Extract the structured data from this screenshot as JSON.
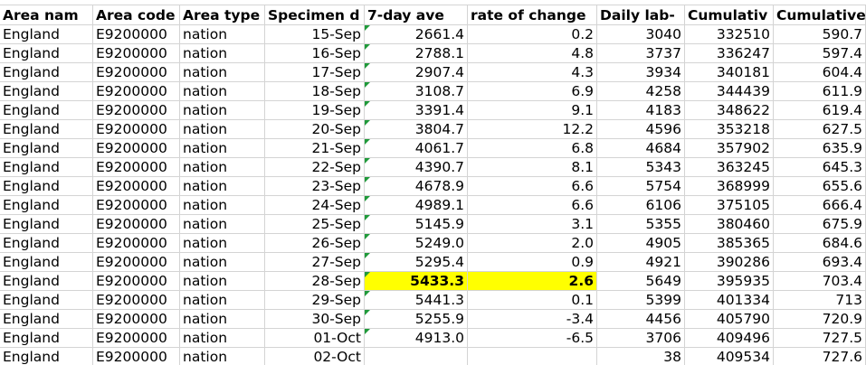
{
  "table": {
    "header": [
      "Area nam",
      "Area code",
      "Area type",
      "Specimen d",
      "7-day ave",
      "rate of change",
      "Daily lab-",
      "Cumulativ",
      "Cumulative"
    ],
    "rows": [
      [
        "England",
        "E9200000",
        "nation",
        "15-Sep",
        "2661.4",
        "0.2",
        "3040",
        "332510",
        "590.7"
      ],
      [
        "England",
        "E9200000",
        "nation",
        "16-Sep",
        "2788.1",
        "4.8",
        "3737",
        "336247",
        "597.4"
      ],
      [
        "England",
        "E9200000",
        "nation",
        "17-Sep",
        "2907.4",
        "4.3",
        "3934",
        "340181",
        "604.4"
      ],
      [
        "England",
        "E9200000",
        "nation",
        "18-Sep",
        "3108.7",
        "6.9",
        "4258",
        "344439",
        "611.9"
      ],
      [
        "England",
        "E9200000",
        "nation",
        "19-Sep",
        "3391.4",
        "9.1",
        "4183",
        "348622",
        "619.4"
      ],
      [
        "England",
        "E9200000",
        "nation",
        "20-Sep",
        "3804.7",
        "12.2",
        "4596",
        "353218",
        "627.5"
      ],
      [
        "England",
        "E9200000",
        "nation",
        "21-Sep",
        "4061.7",
        "6.8",
        "4684",
        "357902",
        "635.9"
      ],
      [
        "England",
        "E9200000",
        "nation",
        "22-Sep",
        "4390.7",
        "8.1",
        "5343",
        "363245",
        "645.3"
      ],
      [
        "England",
        "E9200000",
        "nation",
        "23-Sep",
        "4678.9",
        "6.6",
        "5754",
        "368999",
        "655.6"
      ],
      [
        "England",
        "E9200000",
        "nation",
        "24-Sep",
        "4989.1",
        "6.6",
        "6106",
        "375105",
        "666.4"
      ],
      [
        "England",
        "E9200000",
        "nation",
        "25-Sep",
        "5145.9",
        "3.1",
        "5355",
        "380460",
        "675.9"
      ],
      [
        "England",
        "E9200000",
        "nation",
        "26-Sep",
        "5249.0",
        "2.0",
        "4905",
        "385365",
        "684.6"
      ],
      [
        "England",
        "E9200000",
        "nation",
        "27-Sep",
        "5295.4",
        "0.9",
        "4921",
        "390286",
        "693.4"
      ],
      [
        "England",
        "E9200000",
        "nation",
        "28-Sep",
        "5433.3",
        "2.6",
        "5649",
        "395935",
        "703.4"
      ],
      [
        "England",
        "E9200000",
        "nation",
        "29-Sep",
        "5441.3",
        "0.1",
        "5399",
        "401334",
        "713"
      ],
      [
        "England",
        "E9200000",
        "nation",
        "30-Sep",
        "5255.9",
        "-3.4",
        "4456",
        "405790",
        "720.9"
      ],
      [
        "England",
        "E9200000",
        "nation",
        "01-Oct",
        "4913.0",
        "-6.5",
        "3706",
        "409496",
        "727.5"
      ],
      [
        "England",
        "E9200000",
        "nation",
        "02-Oct",
        null,
        null,
        "38",
        "409534",
        "727.6"
      ]
    ]
  }
}
